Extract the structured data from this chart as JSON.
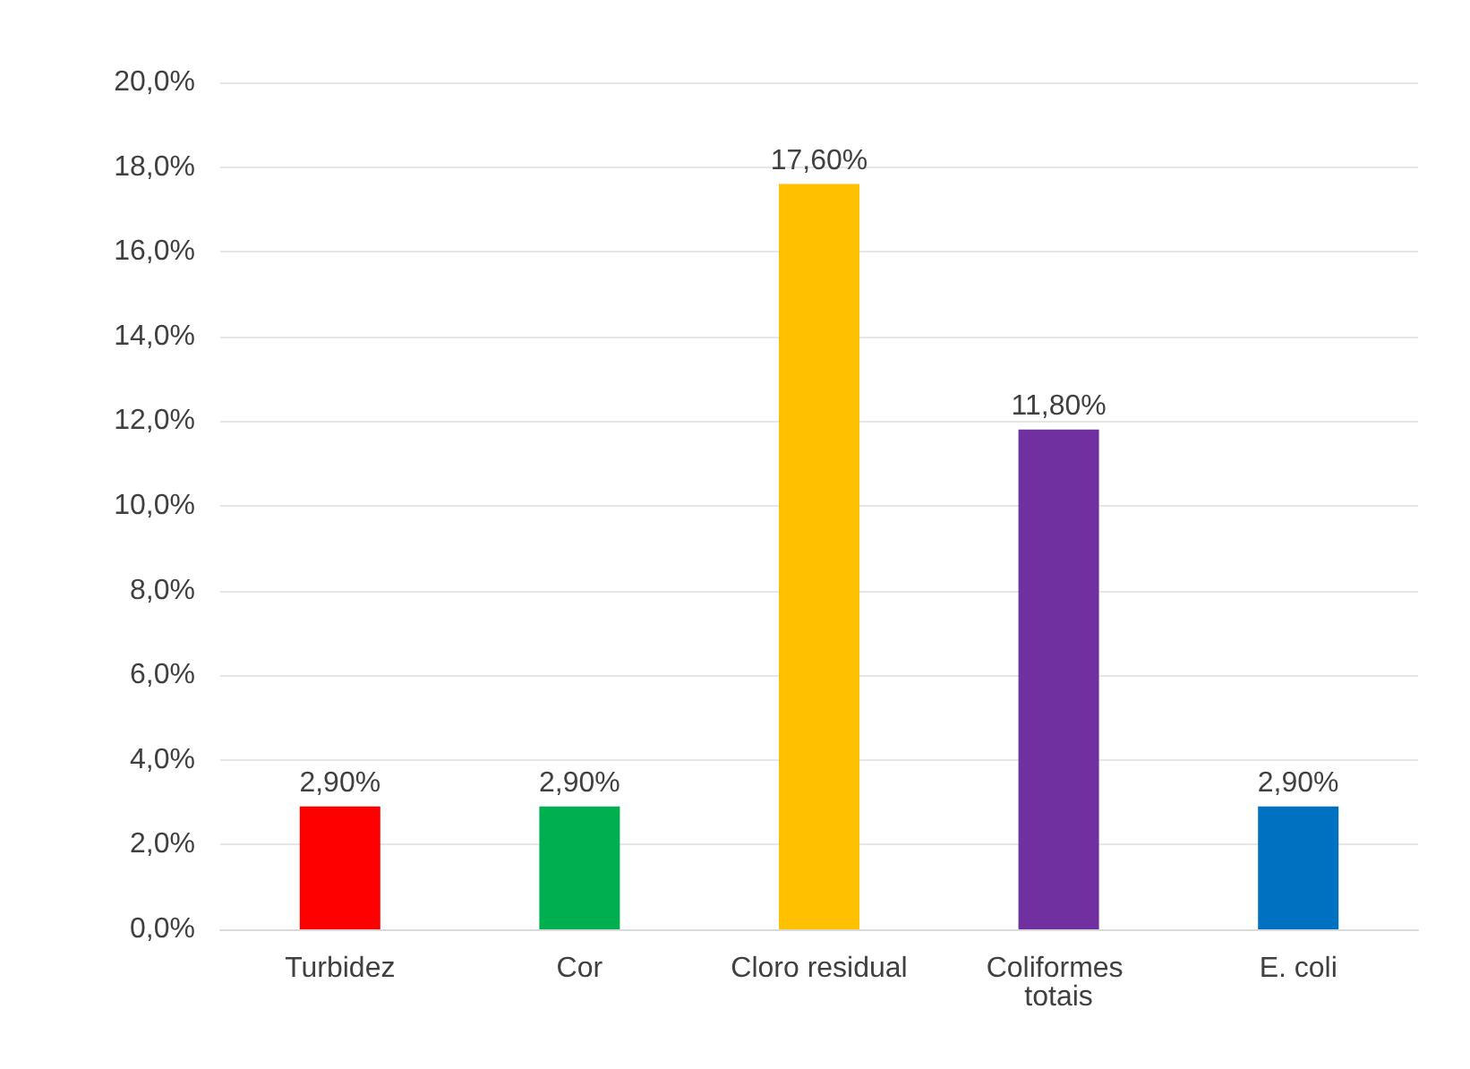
{
  "chart_data": {
    "type": "bar",
    "categories": [
      "Turbidez",
      "Cor",
      "Cloro residual",
      "Coliformes totais",
      "E. coli"
    ],
    "values": [
      2.9,
      2.9,
      17.6,
      11.8,
      2.9
    ],
    "colors": [
      "#ff0000",
      "#00b050",
      "#ffc000",
      "#7030a0",
      "#0070c0"
    ],
    "value_labels": [
      "2,90%",
      "2,90%",
      "17,60%",
      "11,80%",
      "2,90%"
    ],
    "ylim": [
      0,
      20
    ],
    "yticks": [
      {
        "value": 0,
        "label": "0,0%"
      },
      {
        "value": 2,
        "label": "2,0%"
      },
      {
        "value": 4,
        "label": "4,0%"
      },
      {
        "value": 6,
        "label": "6,0%"
      },
      {
        "value": 8,
        "label": "8,0%"
      },
      {
        "value": 10,
        "label": "10,0%"
      },
      {
        "value": 12,
        "label": "12,0%"
      },
      {
        "value": 14,
        "label": "14,0%"
      },
      {
        "value": 16,
        "label": "16,0%"
      },
      {
        "value": 18,
        "label": "18,0%"
      },
      {
        "value": 20,
        "label": "20,0%"
      }
    ],
    "grid": true
  }
}
